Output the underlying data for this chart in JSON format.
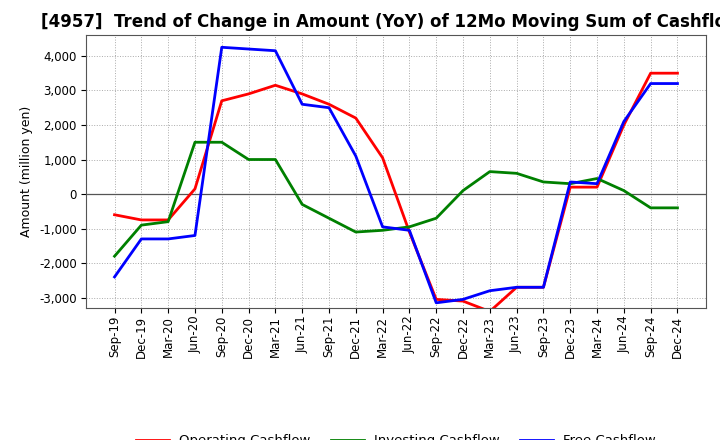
{
  "title": "[4957]  Trend of Change in Amount (YoY) of 12Mo Moving Sum of Cashflows",
  "ylabel": "Amount (million yen)",
  "x_labels": [
    "Sep-19",
    "Dec-19",
    "Mar-20",
    "Jun-20",
    "Sep-20",
    "Dec-20",
    "Mar-21",
    "Jun-21",
    "Sep-21",
    "Dec-21",
    "Mar-22",
    "Jun-22",
    "Sep-22",
    "Dec-22",
    "Mar-23",
    "Jun-23",
    "Sep-23",
    "Dec-23",
    "Mar-24",
    "Jun-24",
    "Sep-24",
    "Dec-24"
  ],
  "operating": [
    -600,
    -750,
    -750,
    150,
    2700,
    2900,
    3150,
    2900,
    2600,
    2200,
    1050,
    -1100,
    -3050,
    -3100,
    -3400,
    -2700,
    -2700,
    200,
    200,
    2000,
    3500,
    3500
  ],
  "investing": [
    -1800,
    -900,
    -800,
    1500,
    1500,
    1000,
    1000,
    -300,
    -700,
    -1100,
    -1050,
    -950,
    -700,
    100,
    650,
    600,
    350,
    300,
    450,
    100,
    -400,
    -400
  ],
  "free": [
    -2400,
    -1300,
    -1300,
    -1200,
    4250,
    4200,
    4150,
    2600,
    2500,
    1100,
    -950,
    -1050,
    -3150,
    -3050,
    -2800,
    -2700,
    -2700,
    350,
    300,
    2100,
    3200,
    3200
  ],
  "op_color": "#FF0000",
  "inv_color": "#008000",
  "free_color": "#0000FF",
  "ylim": [
    -3300,
    4600
  ],
  "yticks": [
    -3000,
    -2000,
    -1000,
    0,
    1000,
    2000,
    3000,
    4000
  ],
  "line_width": 2.0,
  "bg_color": "#FFFFFF",
  "plot_bg_color": "#FFFFFF",
  "grid_color": "#AAAAAA",
  "title_fontsize": 12,
  "label_fontsize": 9,
  "tick_fontsize": 8.5,
  "legend_fontsize": 9.5
}
